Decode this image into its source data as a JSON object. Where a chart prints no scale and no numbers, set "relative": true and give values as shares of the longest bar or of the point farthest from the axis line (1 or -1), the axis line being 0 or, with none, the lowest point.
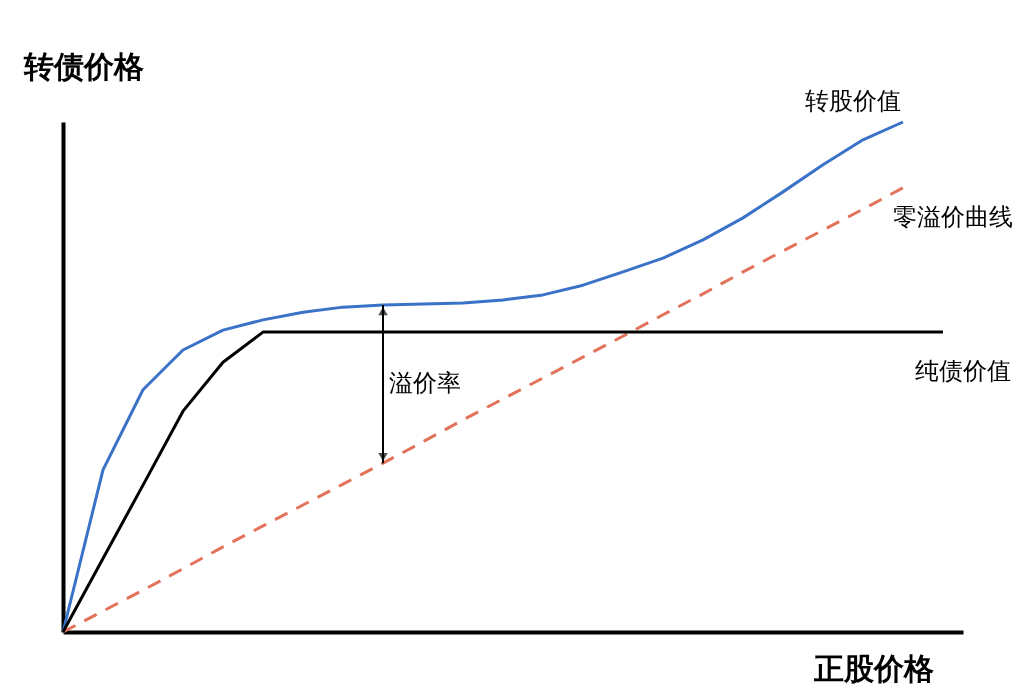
{
  "chart_data": {
    "type": "line",
    "relative": true,
    "xlabel": "正股价格",
    "ylabel": "转债价格",
    "grid": false,
    "marker": "none",
    "categories": [
      null,
      null,
      null,
      null,
      null,
      null,
      null,
      null,
      null,
      null,
      null,
      null,
      null,
      null,
      null,
      null,
      null,
      null,
      null,
      null,
      null,
      null,
      null
    ],
    "series": [
      {
        "name": "转股价值",
        "color": "#3a72c8",
        "line_style": "solid",
        "values": [
          0,
          0.318,
          0.475,
          0.553,
          0.592,
          0.612,
          0.627,
          0.637,
          0.641,
          0.643,
          0.645,
          0.651,
          0.661,
          0.68,
          0.706,
          0.733,
          0.769,
          0.812,
          0.863,
          0.916,
          0.965,
          1.0,
          null
        ]
      },
      {
        "name": "零溢价曲线",
        "color": "#e2735a",
        "line_style": "dashed",
        "values": [
          0,
          0.041,
          0.082,
          0.124,
          0.167,
          0.208,
          0.249,
          0.29,
          0.331,
          0.373,
          0.416,
          0.457,
          0.498,
          0.539,
          0.58,
          0.622,
          0.663,
          0.706,
          0.747,
          0.788,
          0.829,
          0.871,
          null
        ]
      },
      {
        "name": "纯债价值",
        "color": "#000000",
        "line_style": "solid",
        "values": [
          0,
          0.144,
          0.288,
          0.433,
          0.529,
          0.588,
          0.588,
          0.588,
          0.588,
          0.588,
          0.588,
          0.588,
          0.588,
          0.588,
          0.588,
          0.588,
          0.588,
          0.588,
          0.588,
          0.588,
          0.588,
          0.588,
          0.588
        ]
      }
    ],
    "annotations": [
      "溢价率"
    ]
  }
}
